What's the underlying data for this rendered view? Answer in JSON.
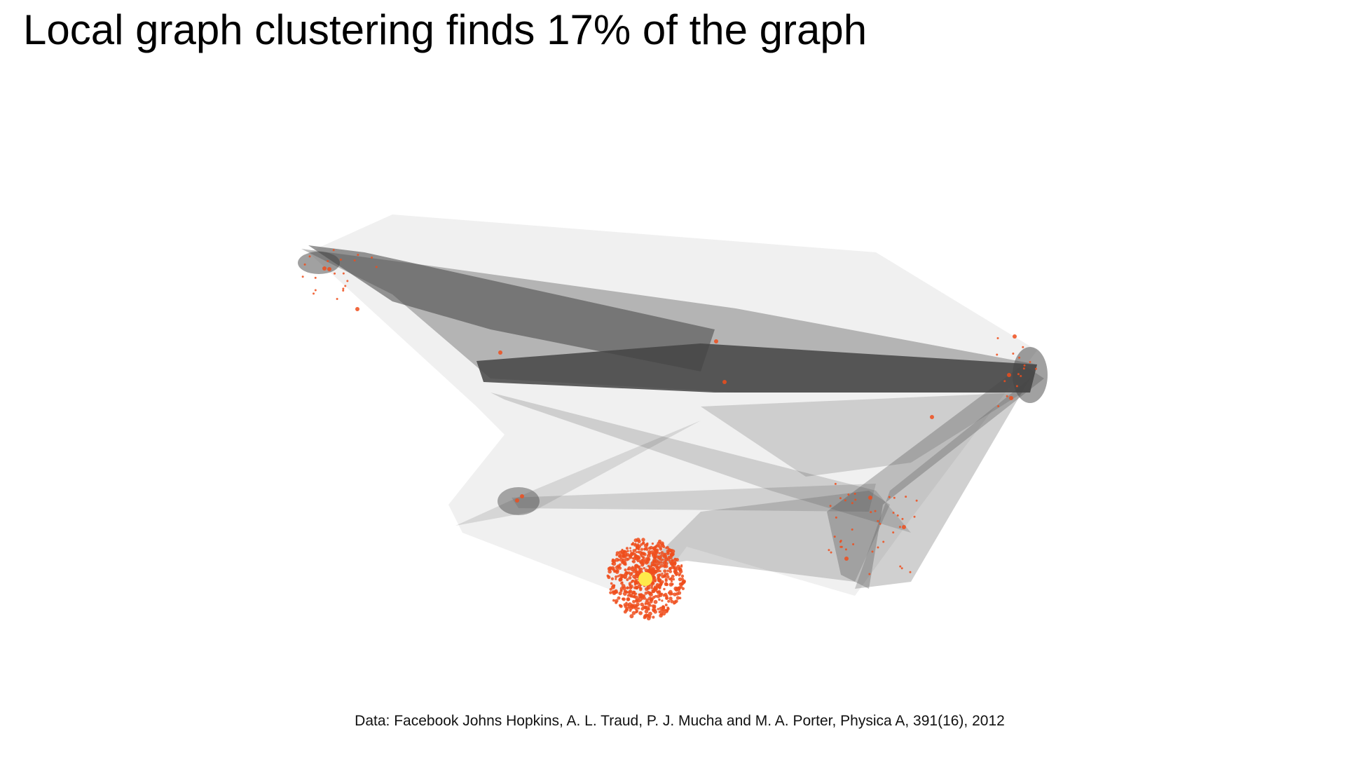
{
  "header": {
    "title": "Local graph clustering finds 17% of the graph"
  },
  "footer": {
    "caption": "Data: Facebook Johns Hopkins, A. L. Traud, P. J. Mucha and M. A. Porter, Physica A, 391(16), 2012"
  }
}
